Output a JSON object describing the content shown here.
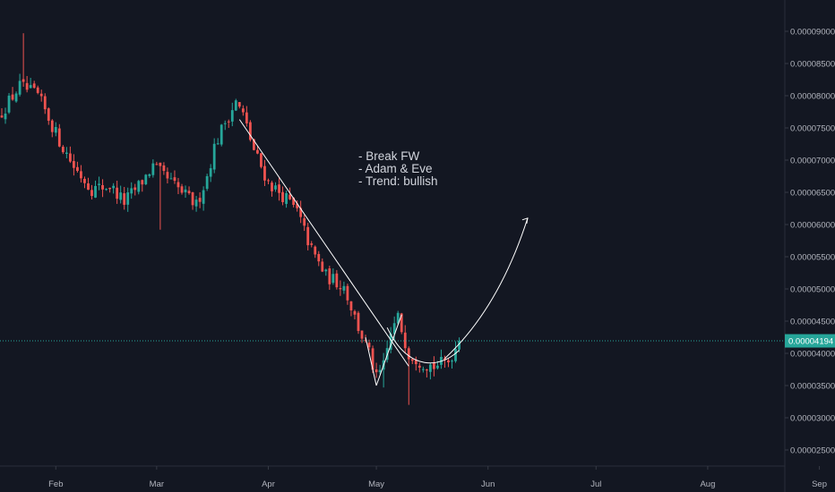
{
  "colors": {
    "background": "#131722",
    "up": "#26a69a",
    "down": "#ef5350",
    "current_price_line": "#26a69a",
    "drawing": "#ffffff",
    "axis_text": "#b2b5be"
  },
  "annotation": {
    "lines": [
      "- Break FW",
      "- Adam & Eve",
      "- Trend: bullish"
    ]
  },
  "chart_data": {
    "type": "candlestick",
    "x_ticks": [
      "Feb",
      "Mar",
      "Apr",
      "May",
      "Jun",
      "Jul",
      "Aug",
      "Sep"
    ],
    "y_ticks": [
      "0.00009000",
      "0.00008500",
      "0.00008000",
      "0.00007500",
      "0.00007000",
      "0.00006500",
      "0.00006000",
      "0.00005500",
      "0.00005000",
      "0.00004500",
      "0.00004000",
      "0.00003500",
      "0.00003000",
      "0.00002500"
    ],
    "y_range": [
      2.22e-05,
      9.3e-05
    ],
    "current_price": "0.00004194",
    "current_price_value": 4.194e-05,
    "candle_span_days": 127,
    "anchor_closes": [
      [
        0,
        7.75e-05
      ],
      [
        5,
        8.15e-05
      ],
      [
        10,
        8e-05
      ],
      [
        13,
        7.65e-05
      ],
      [
        16,
        7.3e-05
      ],
      [
        20,
        6.9e-05
      ],
      [
        25,
        6.55e-05
      ],
      [
        30,
        6.6e-05
      ],
      [
        34,
        6.35e-05
      ],
      [
        38,
        6.6e-05
      ],
      [
        42,
        6.9e-05
      ],
      [
        45,
        6.75e-05
      ],
      [
        50,
        6.5e-05
      ],
      [
        54,
        6.3e-05
      ],
      [
        57,
        6.75e-05
      ],
      [
        59,
        7.2e-05
      ],
      [
        62,
        7.6e-05
      ],
      [
        65,
        7.9e-05
      ],
      [
        67,
        7.7e-05
      ],
      [
        70,
        7.15e-05
      ],
      [
        74,
        6.65e-05
      ],
      [
        79,
        6.4e-05
      ],
      [
        82,
        6.2e-05
      ],
      [
        86,
        5.6e-05
      ],
      [
        90,
        5.2e-05
      ],
      [
        95,
        5.05e-05
      ],
      [
        99,
        4.4e-05
      ],
      [
        102,
        4e-05
      ],
      [
        104,
        3.6e-05
      ],
      [
        106,
        3.8e-05
      ],
      [
        108,
        4.3e-05
      ],
      [
        110,
        4.55e-05
      ],
      [
        113,
        4e-05
      ],
      [
        117,
        3.85e-05
      ],
      [
        120,
        3.8e-05
      ],
      [
        124,
        3.88e-05
      ],
      [
        127,
        4.19e-05
      ]
    ],
    "drawings": {
      "trendline": [
        [
          66,
          7.63e-05
        ],
        [
          113,
          3.8e-05
        ]
      ],
      "falling_wedge_lower": [
        [
          101,
          4.25e-05
        ],
        [
          104,
          3.5e-05
        ]
      ],
      "adam_line": [
        [
          104,
          3.5e-05
        ],
        [
          111,
          4.6e-05
        ]
      ],
      "eve_curve": [
        [
          107,
          4.4e-05
        ],
        [
          113,
          3.78e-05
        ],
        [
          122,
          3.83e-05
        ],
        [
          127,
          4.05e-05
        ]
      ],
      "projection_curve": [
        [
          123,
          3.92e-05
        ],
        [
          138,
          4.7e-05
        ],
        [
          146,
          6.1e-05
        ]
      ]
    }
  }
}
